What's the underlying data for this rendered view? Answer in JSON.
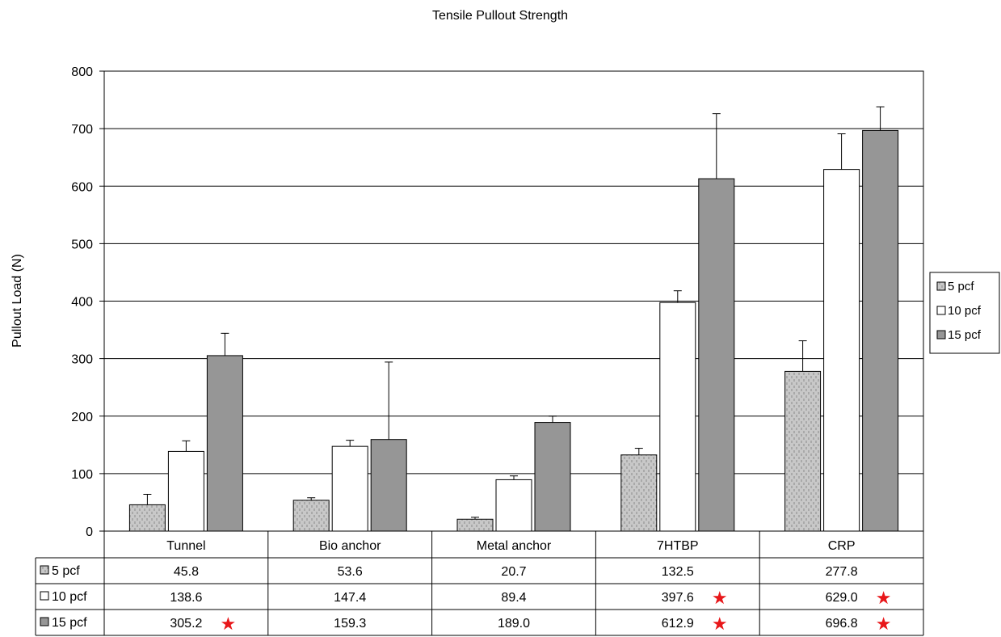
{
  "chart_data": {
    "type": "bar",
    "title": "Tensile Pullout Strength",
    "ylabel": "Pullout Load (N)",
    "xlabel": "",
    "ylim": [
      0,
      800
    ],
    "yticks": [
      0,
      100,
      200,
      300,
      400,
      500,
      600,
      700,
      800
    ],
    "grid": true,
    "legend_position": "right",
    "categories": [
      "Tunnel",
      "Bio anchor",
      "Metal anchor",
      "7HTBP",
      "CRP"
    ],
    "series": [
      {
        "name": "5 pcf",
        "values": [
          45.8,
          53.6,
          20.7,
          132.5,
          277.8
        ],
        "labels": [
          "45.8",
          "53.6",
          "20.7",
          "132.5",
          "277.8"
        ],
        "error_upper": [
          64,
          58,
          24,
          144,
          331
        ],
        "significant": [
          false,
          false,
          false,
          false,
          false
        ],
        "fill": "#c8c8c8",
        "pattern": "dots"
      },
      {
        "name": "10 pcf",
        "values": [
          138.6,
          147.4,
          89.4,
          397.6,
          629.0
        ],
        "labels": [
          "138.6",
          "147.4",
          "89.4",
          "397.6",
          "629.0"
        ],
        "error_upper": [
          157,
          158,
          96,
          418,
          691
        ],
        "significant": [
          false,
          false,
          false,
          true,
          true
        ],
        "fill": "#ffffff",
        "pattern": "none"
      },
      {
        "name": "15 pcf",
        "values": [
          305.2,
          159.3,
          189.0,
          612.9,
          696.8
        ],
        "labels": [
          "305.2",
          "159.3",
          "189.0",
          "612.9",
          "696.8"
        ],
        "error_upper": [
          344,
          294,
          200,
          726,
          738
        ],
        "significant": [
          true,
          false,
          false,
          true,
          true
        ],
        "fill": "#969696",
        "pattern": "none"
      }
    ],
    "significance_marker": "★",
    "significance_color": "#e8171a"
  }
}
